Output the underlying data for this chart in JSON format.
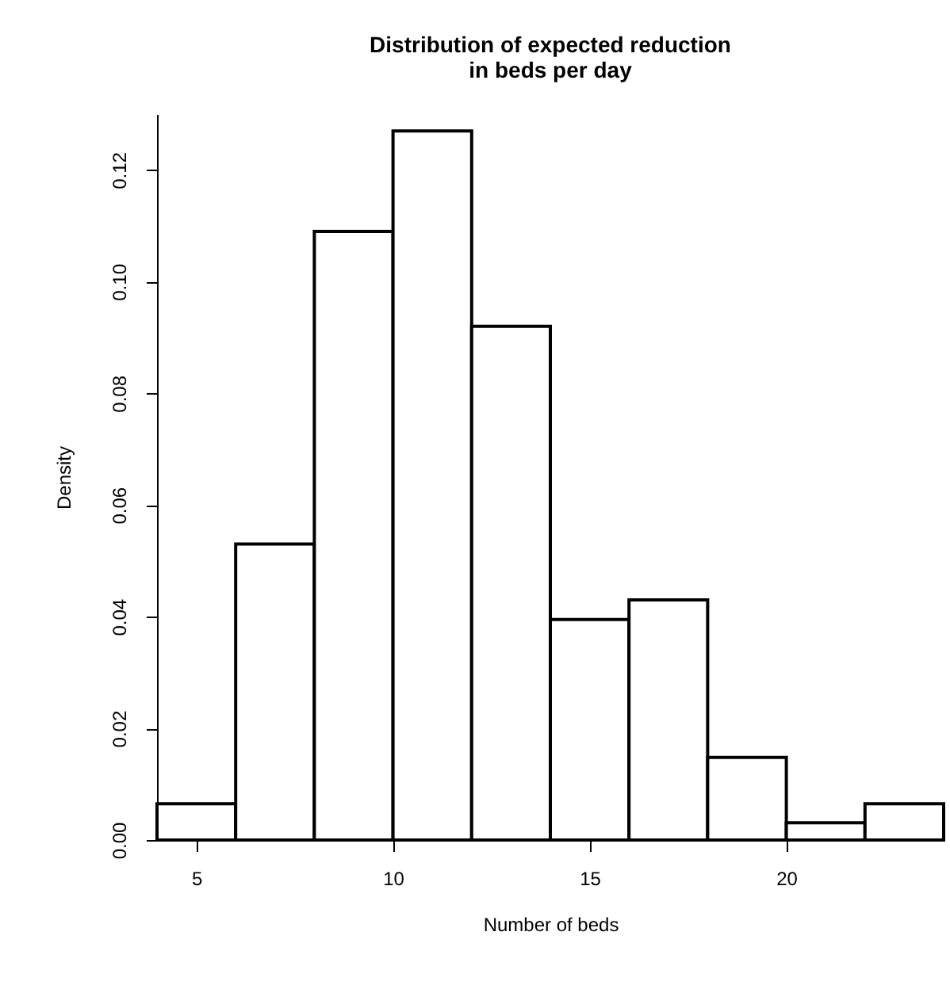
{
  "chart_data": {
    "type": "histogram",
    "title": "Distribution of expected reduction\nin beds per day",
    "xlabel": "Number of beds",
    "ylabel": "Density",
    "bins": [
      4,
      6,
      8,
      10,
      12,
      14,
      16,
      18,
      20,
      22,
      24
    ],
    "values": [
      0.0065,
      0.053,
      0.109,
      0.127,
      0.092,
      0.0395,
      0.043,
      0.0148,
      0.0031,
      0.0065
    ],
    "color": "#ffffff",
    "xlim": [
      4,
      24
    ],
    "xticks": [
      5,
      10,
      15,
      20
    ],
    "ylim": [
      0,
      0.13
    ],
    "yticks": [
      {
        "value": 0,
        "label": "0.00"
      },
      {
        "value": 0.02,
        "label": "0.02"
      },
      {
        "value": 0.04,
        "label": "0.04"
      },
      {
        "value": 0.06,
        "label": "0.06"
      },
      {
        "value": 0.08,
        "label": "0.08"
      },
      {
        "value": 0.1,
        "label": "0.10"
      },
      {
        "value": 0.12,
        "label": "0.12"
      }
    ],
    "grid": false
  }
}
